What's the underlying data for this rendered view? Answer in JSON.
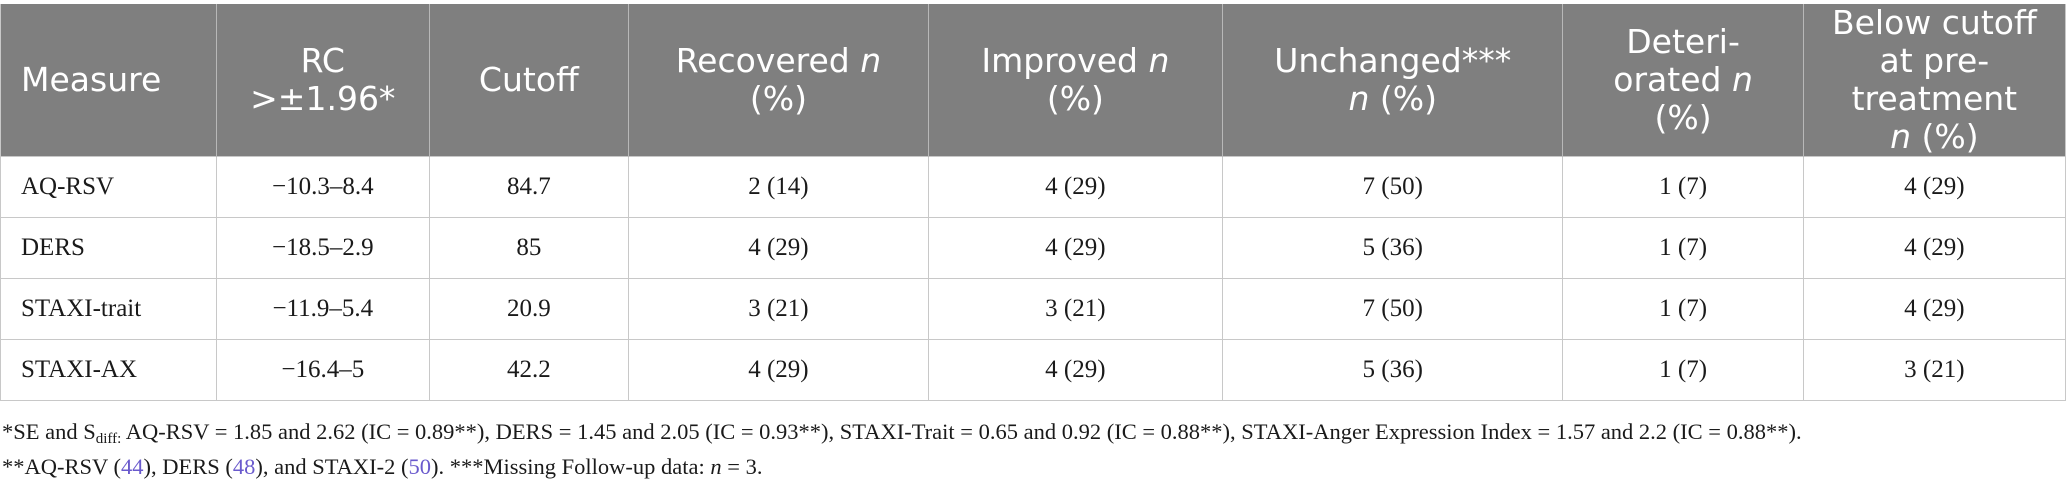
{
  "table": {
    "headers": [
      {
        "text": "Measure",
        "italic": ""
      },
      {
        "text": "RC >±1.96*",
        "italic": ""
      },
      {
        "text": "Cutoff",
        "italic": ""
      },
      {
        "text": "Recovered ",
        "italic": "n",
        "after": "(%)"
      },
      {
        "text": "Improved ",
        "italic": "n",
        "after": "(%)"
      },
      {
        "text": "Unchanged***",
        "italic": "n",
        "after": "(%)"
      },
      {
        "text": "Deteri-orated ",
        "italic": "n",
        "after": "(%)"
      },
      {
        "text": "Below cutoff at pre-treatment",
        "italic": "n",
        "after": "(%)"
      }
    ],
    "rows": [
      [
        "AQ-RSV",
        "−10.3–8.4",
        "84.7",
        "2 (14)",
        "4 (29)",
        "7 (50)",
        "1 (7)",
        "4 (29)"
      ],
      [
        "DERS",
        "−18.5–2.9",
        "85",
        "4 (29)",
        "4 (29)",
        "5 (36)",
        "1 (7)",
        "4 (29)"
      ],
      [
        "STAXI-trait",
        "−11.9–5.4",
        "20.9",
        "3 (21)",
        "3 (21)",
        "7 (50)",
        "1 (7)",
        "4 (29)"
      ],
      [
        "STAXI-AX",
        "−16.4–5",
        "42.2",
        "4 (29)",
        "4 (29)",
        "5 (36)",
        "1 (7)",
        "3 (21)"
      ]
    ]
  },
  "footnotes": {
    "line1": {
      "prefix": "*SE and S",
      "sub": "diff:",
      "rest": " AQ-RSV = 1.85 and 2.62 (IC = 0.89**), DERS = 1.45 and 2.05 (IC = 0.93**), STAXI-Trait = 0.65 and 0.92 (IC = 0.88**), STAXI-Anger Expression Index = 1.57 and 2.2 (IC = 0.88**)."
    },
    "line2": {
      "a": "**AQ-RSV (",
      "ref1": "44",
      "b": "), DERS (",
      "ref2": "48",
      "c": "), and STAXI-2 (",
      "ref3": "50",
      "d": "). ***Missing Follow-up data: ",
      "n": "n",
      "e": " = 3."
    }
  },
  "colors": {
    "header_bg": "#7f7f7f",
    "header_text": "#ffffff",
    "reference_link": "#6a5acd",
    "grid": "#c8c8c8"
  }
}
